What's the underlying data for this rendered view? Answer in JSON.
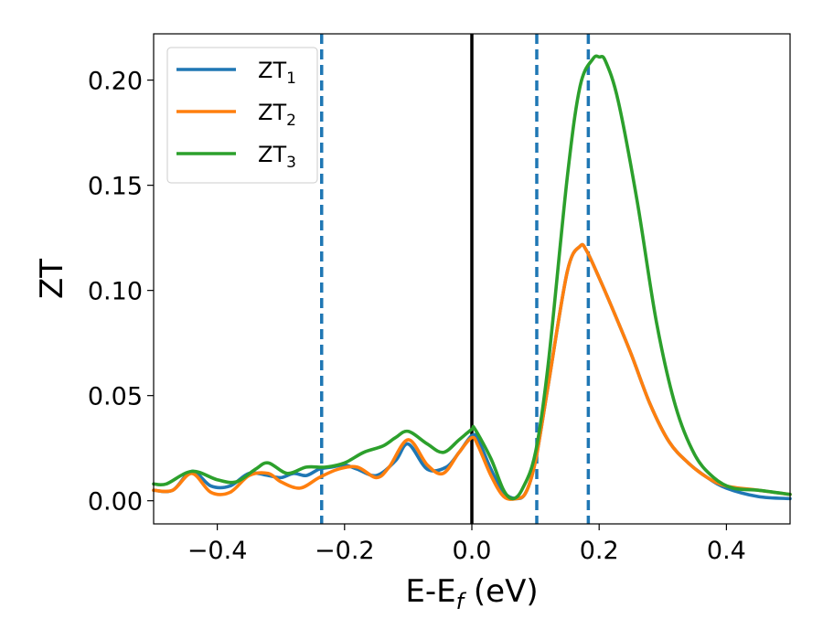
{
  "chart_data": {
    "type": "line",
    "title": "",
    "xlabel": "E-E",
    "xlabel_sub": "f",
    "xlabel_suffix": " (eV)",
    "ylabel": "ZT",
    "xlim": [
      -0.5,
      0.5
    ],
    "ylim": [
      -0.011,
      0.222
    ],
    "xticks": [
      -0.4,
      -0.2,
      0.0,
      0.2,
      0.4
    ],
    "xtick_labels": [
      "−0.4",
      "−0.2",
      "0.0",
      "0.2",
      "0.4"
    ],
    "yticks": [
      0.0,
      0.05,
      0.1,
      0.15,
      0.2
    ],
    "ytick_labels": [
      "0.00",
      "0.05",
      "0.10",
      "0.15",
      "0.20"
    ],
    "grid": false,
    "legend_position": "top-left",
    "vertical_lines": [
      {
        "x": 0.0,
        "style": "solid",
        "color": "#000000"
      },
      {
        "x": -0.236,
        "style": "dashed",
        "color": "#1f77b4"
      },
      {
        "x": 0.102,
        "style": "dashed",
        "color": "#1f77b4"
      },
      {
        "x": 0.183,
        "style": "dashed",
        "color": "#1f77b4"
      }
    ],
    "series": [
      {
        "name": "ZT",
        "name_sub": "1",
        "color": "#1f77b4",
        "x": [
          -0.5,
          -0.47,
          -0.44,
          -0.41,
          -0.38,
          -0.35,
          -0.32,
          -0.3,
          -0.28,
          -0.26,
          -0.24,
          -0.22,
          -0.2,
          -0.18,
          -0.15,
          -0.12,
          -0.1,
          -0.07,
          -0.04,
          -0.02,
          0.0,
          0.01,
          0.03,
          0.05,
          0.07,
          0.085,
          0.1,
          0.12,
          0.15,
          0.17,
          0.18,
          0.2,
          0.22,
          0.25,
          0.28,
          0.31,
          0.34,
          0.37,
          0.4,
          0.45,
          0.5
        ],
        "values": [
          0.005,
          0.005,
          0.014,
          0.007,
          0.007,
          0.013,
          0.012,
          0.011,
          0.013,
          0.012,
          0.015,
          0.016,
          0.017,
          0.015,
          0.012,
          0.019,
          0.027,
          0.015,
          0.016,
          0.023,
          0.031,
          0.029,
          0.015,
          0.004,
          0.001,
          0.004,
          0.019,
          0.055,
          0.109,
          0.121,
          0.119,
          0.106,
          0.092,
          0.07,
          0.046,
          0.028,
          0.018,
          0.011,
          0.006,
          0.002,
          0.001
        ]
      },
      {
        "name": "ZT",
        "name_sub": "2",
        "color": "#ff7f0e",
        "x": [
          -0.5,
          -0.47,
          -0.44,
          -0.41,
          -0.38,
          -0.35,
          -0.32,
          -0.3,
          -0.27,
          -0.24,
          -0.21,
          -0.18,
          -0.15,
          -0.13,
          -0.1,
          -0.07,
          -0.045,
          -0.02,
          0.0,
          0.01,
          0.03,
          0.05,
          0.07,
          0.085,
          0.1,
          0.12,
          0.15,
          0.17,
          0.18,
          0.2,
          0.22,
          0.25,
          0.28,
          0.31,
          0.34,
          0.37,
          0.4,
          0.45,
          0.5
        ],
        "values": [
          0.005,
          0.005,
          0.013,
          0.004,
          0.004,
          0.012,
          0.013,
          0.009,
          0.006,
          0.011,
          0.015,
          0.016,
          0.011,
          0.016,
          0.029,
          0.017,
          0.013,
          0.023,
          0.03,
          0.026,
          0.012,
          0.002,
          0.001,
          0.004,
          0.019,
          0.055,
          0.109,
          0.121,
          0.119,
          0.106,
          0.092,
          0.07,
          0.046,
          0.028,
          0.018,
          0.011,
          0.007,
          0.005,
          0.003
        ]
      },
      {
        "name": "ZT",
        "name_sub": "3",
        "color": "#2ca02c",
        "x": [
          -0.5,
          -0.48,
          -0.44,
          -0.4,
          -0.37,
          -0.34,
          -0.32,
          -0.29,
          -0.26,
          -0.23,
          -0.2,
          -0.17,
          -0.14,
          -0.12,
          -0.1,
          -0.07,
          -0.045,
          -0.02,
          0.0,
          0.005,
          0.03,
          0.05,
          0.065,
          0.08,
          0.1,
          0.12,
          0.15,
          0.17,
          0.19,
          0.2,
          0.21,
          0.23,
          0.26,
          0.29,
          0.32,
          0.35,
          0.38,
          0.41,
          0.45,
          0.5
        ],
        "values": [
          0.008,
          0.008,
          0.014,
          0.01,
          0.009,
          0.015,
          0.018,
          0.013,
          0.016,
          0.016,
          0.018,
          0.023,
          0.026,
          0.03,
          0.033,
          0.027,
          0.023,
          0.029,
          0.034,
          0.034,
          0.02,
          0.005,
          0.001,
          0.006,
          0.023,
          0.065,
          0.154,
          0.197,
          0.21,
          0.211,
          0.209,
          0.19,
          0.142,
          0.085,
          0.045,
          0.022,
          0.011,
          0.006,
          0.005,
          0.003
        ]
      }
    ]
  }
}
